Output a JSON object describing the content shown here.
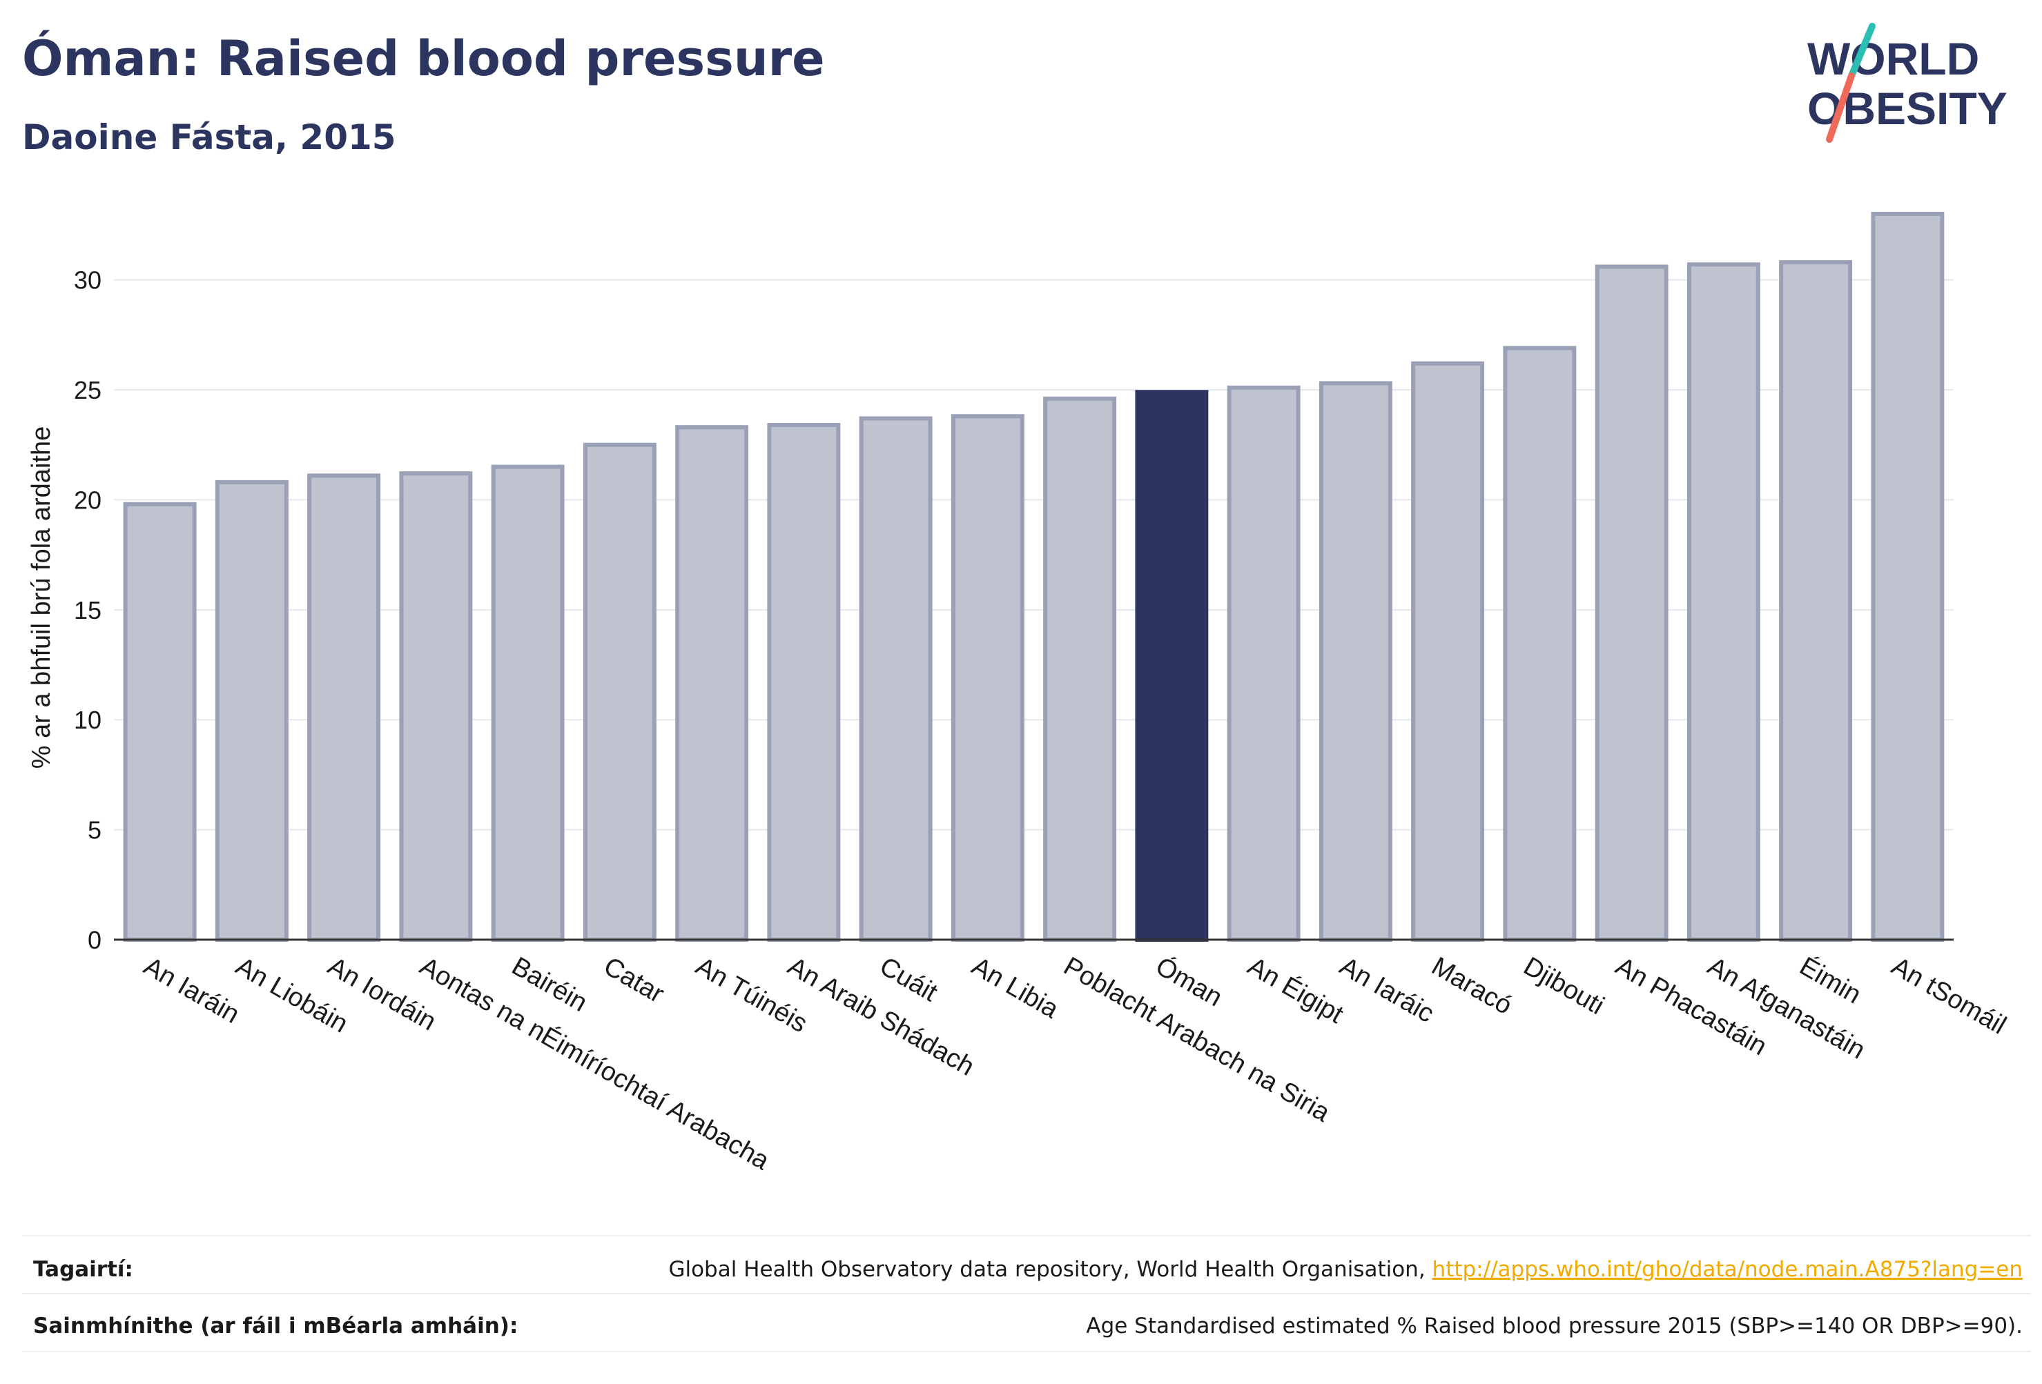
{
  "header": {
    "title": "Óman: Raised blood pressure",
    "subtitle": "Daoine Fásta, 2015"
  },
  "logo": {
    "line1": "WORLD",
    "line2": "OBESITY"
  },
  "colors": {
    "highlight": "#2b3560",
    "bar_fill": "#bfc3cf",
    "bar_stroke": "#9aa0b5",
    "grid": "#e6e8ee",
    "axis": "#333333",
    "logo_teal": "#2bbfb3",
    "logo_coral": "#ef6a5b"
  },
  "chart_data": {
    "type": "bar",
    "title": "Óman: Raised blood pressure",
    "subtitle": "Daoine Fásta, 2015",
    "xlabel": "",
    "ylabel": "% ar a bhfuil brú fola ardaithe",
    "ylim": [
      0,
      33
    ],
    "yticks": [
      0,
      5,
      10,
      15,
      20,
      25,
      30
    ],
    "grid": true,
    "highlight": "Óman",
    "categories": [
      "An Iaráin",
      "An Liobáin",
      "An Iordáin",
      "Aontas na nÉimíríochtaí Arabacha",
      "Bairéin",
      "Catar",
      "An Túinéis",
      "An Araib Shádach",
      "Cuáit",
      "An Libia",
      "Poblacht Arabach na Siria",
      "Óman",
      "An Éigipt",
      "An Iaráic",
      "Maracó",
      "Djibouti",
      "An Phacastáin",
      "An Afganastáin",
      "Éimin",
      "An tSomáil"
    ],
    "values": [
      19.8,
      20.8,
      21.1,
      21.2,
      21.5,
      22.5,
      23.3,
      23.4,
      23.7,
      23.8,
      24.6,
      24.9,
      25.1,
      25.3,
      26.2,
      26.9,
      30.6,
      30.7,
      30.8,
      33.0
    ]
  },
  "footer": {
    "references_label": "Tagairtí:",
    "references_text": "Global Health Observatory data repository, World Health Organisation, ",
    "references_link": "http://apps.who.int/gho/data/node.main.A875?lang=en",
    "definitions_label": "Sainmhínithe (ar fáil i mBéarla amháin):",
    "definitions_text": "Age Standardised estimated % Raised blood pressure 2015 (SBP>=140 OR DBP>=90)."
  }
}
